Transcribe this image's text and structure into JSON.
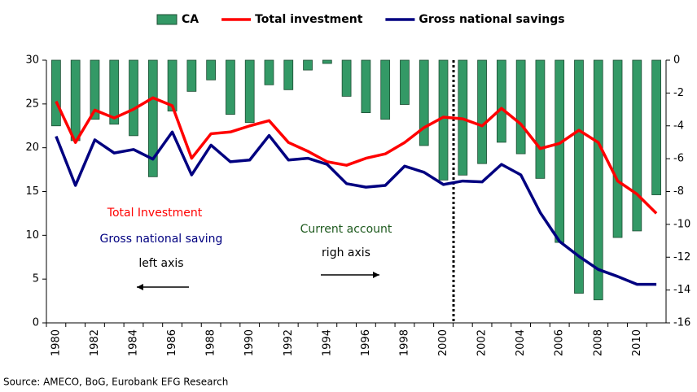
{
  "chart_data": {
    "type": "bar_line",
    "categories": [
      "1980",
      null,
      "1982",
      null,
      "1984",
      null,
      "1986",
      null,
      "1988",
      null,
      "1990",
      null,
      "1992",
      null,
      "1994",
      null,
      "1996",
      null,
      "1998",
      null,
      "2000",
      null,
      "2002",
      null,
      "2004",
      null,
      "2006",
      null,
      "2008",
      null,
      "2010",
      null
    ],
    "series": [
      {
        "name": "CA",
        "type": "bar",
        "axis": "y2",
        "color": "#339966",
        "values": [
          -4.0,
          -4.9,
          -3.6,
          -3.9,
          -4.6,
          -7.1,
          -3.1,
          -1.9,
          -1.2,
          -3.3,
          -3.8,
          -1.5,
          -1.8,
          -0.6,
          -0.2,
          -2.2,
          -3.2,
          -3.6,
          -2.7,
          -5.2,
          -7.3,
          -7.0,
          -6.3,
          -5.0,
          -5.7,
          -7.2,
          -11.1,
          -14.2,
          -14.6,
          -10.8,
          -10.4,
          -8.2
        ]
      },
      {
        "name": "Total investment",
        "type": "line",
        "color": "#ff0000",
        "values": [
          25.3,
          20.6,
          24.3,
          23.4,
          24.4,
          25.7,
          24.8,
          18.8,
          21.6,
          21.8,
          22.5,
          23.1,
          20.6,
          19.6,
          18.4,
          18.0,
          18.8,
          19.3,
          20.6,
          22.3,
          23.5,
          23.3,
          22.5,
          24.5,
          22.7,
          19.9,
          20.5,
          22.0,
          20.6,
          16.2,
          14.7,
          12.5
        ]
      },
      {
        "name": "Gross national savings",
        "type": "line",
        "color": "#000080",
        "values": [
          21.3,
          15.7,
          20.9,
          19.4,
          19.8,
          18.7,
          21.8,
          16.9,
          20.3,
          18.4,
          18.6,
          21.4,
          18.6,
          18.8,
          18.1,
          15.9,
          15.5,
          15.7,
          17.9,
          17.2,
          15.8,
          16.2,
          16.1,
          18.1,
          16.9,
          12.6,
          9.3,
          7.6,
          6.1,
          5.3,
          4.4,
          4.4
        ]
      }
    ],
    "ylim": [
      0,
      30
    ],
    "yticks": [
      0,
      5,
      10,
      15,
      20,
      25,
      30
    ],
    "y2lim": [
      -16,
      0
    ],
    "y2ticks": [
      -16,
      -14,
      -12,
      -10,
      -8,
      -6,
      -4,
      -2,
      0
    ],
    "annotations": [
      "Total Investment",
      "Gross national saving",
      "left axis",
      "Current account",
      "righ axis"
    ],
    "source": "Source: AMECO, BoG, Eurobank EFG Research"
  }
}
